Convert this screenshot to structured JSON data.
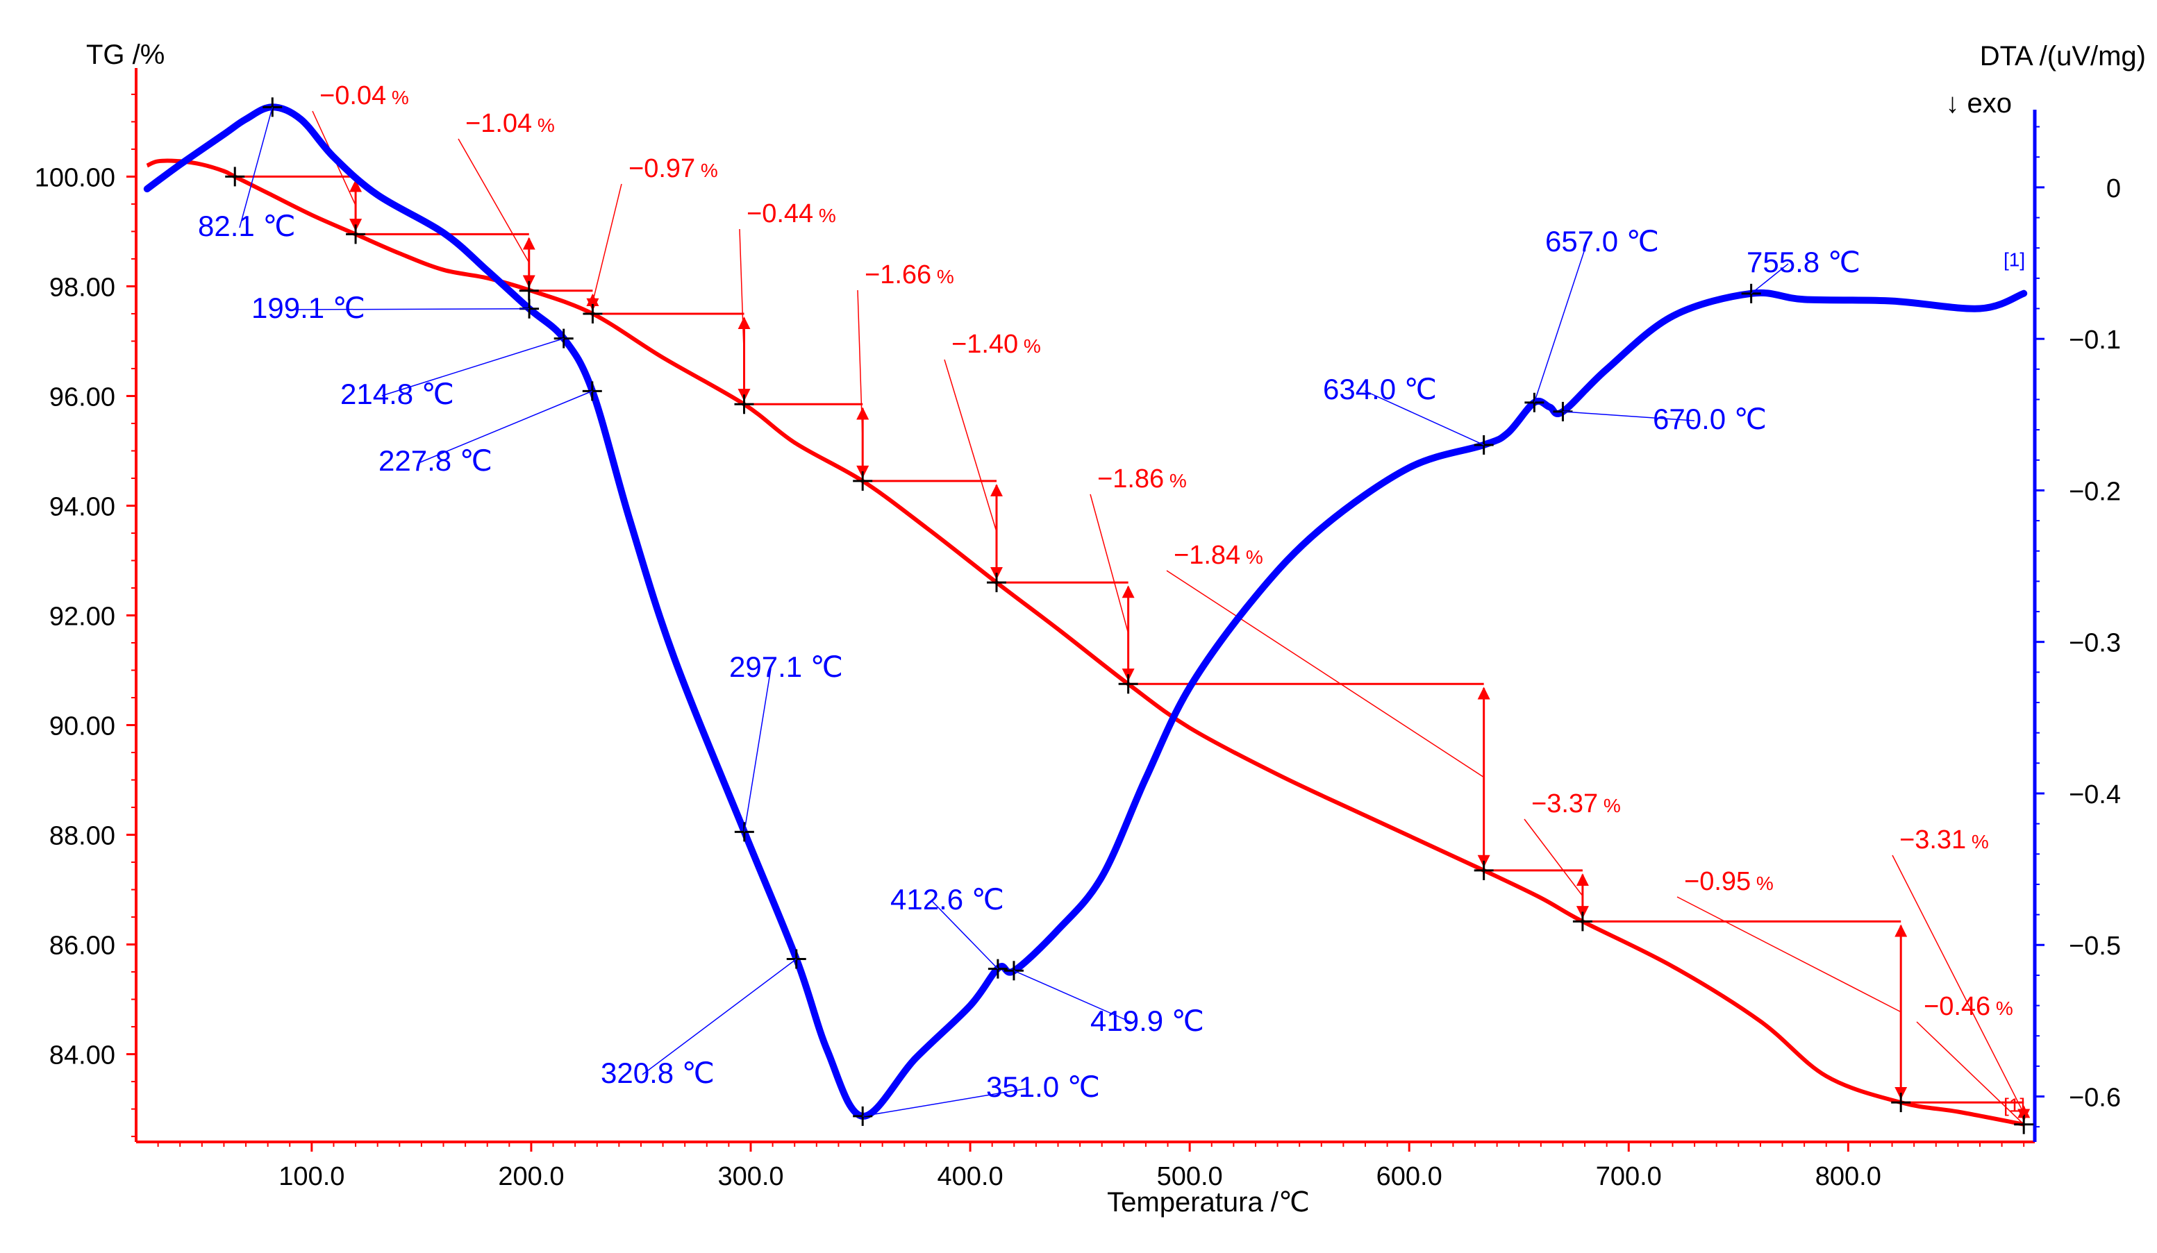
{
  "chart_data": {
    "type": "line",
    "title": "",
    "xlabel": "Temperatura /℃",
    "ylabel_left": "TG /%",
    "ylabel_right": "DTA /(uV/mg)",
    "right_axis_note": "↓  exo",
    "xlim": [
      20,
      885
    ],
    "ylim_left": [
      82.4,
      101.6
    ],
    "ylim_right": [
      -0.63,
      0.065
    ],
    "x_ticks": [
      100,
      200,
      300,
      400,
      500,
      600,
      700,
      800
    ],
    "x_tick_labels": [
      "100.0",
      "200.0",
      "300.0",
      "400.0",
      "500.0",
      "600.0",
      "700.0",
      "800.0"
    ],
    "y_left_ticks": [
      100,
      98,
      96,
      94,
      92,
      90,
      88,
      86,
      84
    ],
    "y_left_tick_labels": [
      "100.00",
      "98.00",
      "96.00",
      "94.00",
      "92.00",
      "90.00",
      "88.00",
      "86.00",
      "84.00"
    ],
    "y_right_ticks": [
      0,
      -0.1,
      -0.2,
      -0.3,
      -0.4,
      -0.5,
      -0.6
    ],
    "y_right_tick_labels": [
      "0",
      "−0.1",
      "−0.2",
      "−0.3",
      "−0.4",
      "−0.5",
      "−0.6"
    ],
    "colors": {
      "tg": "#ff0000",
      "dta": "#0000ff",
      "axis_left": "#ff0000",
      "axis_right": "#0000ff"
    },
    "series": [
      {
        "name": "TG",
        "axis": "left",
        "color": "#ff0000",
        "x": [
          25,
          30,
          40,
          50,
          60,
          65,
          80,
          100,
          120,
          140,
          160,
          180,
          200,
          228,
          260,
          297,
          320,
          351,
          380,
          412,
          440,
          472,
          500,
          540,
          580,
          634,
          660,
          679,
          720,
          760,
          790,
          824,
          850,
          880
        ],
        "y": [
          100.2,
          100.28,
          100.28,
          100.22,
          100.1,
          100.0,
          99.7,
          99.3,
          98.95,
          98.6,
          98.3,
          98.15,
          97.92,
          97.5,
          96.7,
          95.85,
          95.15,
          94.45,
          93.6,
          92.6,
          91.75,
          90.75,
          89.95,
          89.1,
          88.35,
          87.35,
          86.85,
          86.42,
          85.6,
          84.6,
          83.6,
          83.12,
          82.95,
          82.72
        ]
      },
      {
        "name": "DTA",
        "axis": "right",
        "color": "#0000ff",
        "x": [
          25,
          40,
          60,
          70,
          82,
          95,
          110,
          130,
          160,
          180,
          199,
          215,
          228,
          245,
          265,
          297,
          321,
          335,
          351,
          375,
          400,
          413,
          420,
          440,
          460,
          480,
          500,
          530,
          560,
          600,
          634,
          645,
          657,
          664,
          670,
          690,
          720,
          756,
          780,
          820,
          860,
          880
        ],
        "y": [
          -0.001,
          0.015,
          0.035,
          0.045,
          0.053,
          0.045,
          0.02,
          -0.005,
          -0.03,
          -0.055,
          -0.08,
          -0.1,
          -0.135,
          -0.22,
          -0.31,
          -0.425,
          -0.51,
          -0.57,
          -0.613,
          -0.575,
          -0.54,
          -0.515,
          -0.517,
          -0.49,
          -0.455,
          -0.39,
          -0.33,
          -0.27,
          -0.225,
          -0.185,
          -0.17,
          -0.162,
          -0.142,
          -0.145,
          -0.148,
          -0.12,
          -0.085,
          -0.07,
          -0.074,
          -0.075,
          -0.08,
          -0.07
        ]
      }
    ],
    "tg_steps": [
      {
        "x": 65,
        "y": 100.0,
        "x2": 120,
        "y2": 98.95,
        "label": "−0.04",
        "unit": "%"
      },
      {
        "x": 120,
        "y": 98.95,
        "x2": 199,
        "y2": 97.92,
        "label": "−1.04",
        "unit": "%"
      },
      {
        "x": 199,
        "y": 97.92,
        "x2": 228,
        "y2": 97.5,
        "label": "−0.97",
        "unit": "%"
      },
      {
        "x": 228,
        "y": 97.5,
        "x2": 297,
        "y2": 95.85,
        "label": "−0.44",
        "unit": "%"
      },
      {
        "x": 297,
        "y": 95.85,
        "x2": 351,
        "y2": 94.45,
        "label": "−1.66",
        "unit": "%"
      },
      {
        "x": 351,
        "y": 94.45,
        "x2": 412,
        "y2": 92.6,
        "label": "−1.40",
        "unit": "%"
      },
      {
        "x": 412,
        "y": 92.6,
        "x2": 472,
        "y2": 90.75,
        "label": "−1.86",
        "unit": "%"
      },
      {
        "x": 472,
        "y": 90.75,
        "x2": 634,
        "y2": 87.35,
        "label": "−1.84",
        "unit": "%"
      },
      {
        "x": 634,
        "y": 87.35,
        "x2": 679,
        "y2": 86.42,
        "label": "−3.37",
        "unit": "%"
      },
      {
        "x": 679,
        "y": 86.42,
        "x2": 824,
        "y2": 83.12,
        "label": "−0.95",
        "unit": "%"
      },
      {
        "x": 824,
        "y": 83.12,
        "x2": 880,
        "y2": 82.72,
        "label": "−3.31",
        "unit": "%"
      },
      {
        "x": 880,
        "y": 82.72,
        "label": "−0.46",
        "unit": "%"
      }
    ],
    "dta_peaks": [
      {
        "temp": 82.1,
        "label": "82.1 ℃"
      },
      {
        "temp": 199.1,
        "label": "199.1 ℃"
      },
      {
        "temp": 214.8,
        "label": "214.8 ℃"
      },
      {
        "temp": 227.8,
        "label": "227.8 ℃"
      },
      {
        "temp": 297.1,
        "label": "297.1 ℃"
      },
      {
        "temp": 320.8,
        "label": "320.8 ℃"
      },
      {
        "temp": 351.0,
        "label": "351.0 ℃"
      },
      {
        "temp": 412.6,
        "label": "412.6 ℃"
      },
      {
        "temp": 419.9,
        "label": "419.9 ℃"
      },
      {
        "temp": 634.0,
        "label": "634.0 ℃"
      },
      {
        "temp": 657.0,
        "label": "657.0 ℃"
      },
      {
        "temp": 670.0,
        "label": "670.0 ℃"
      },
      {
        "temp": 755.8,
        "label": "755.8 ℃"
      }
    ],
    "curve_tags": {
      "dta": "[1]",
      "tg": "[1]"
    }
  }
}
